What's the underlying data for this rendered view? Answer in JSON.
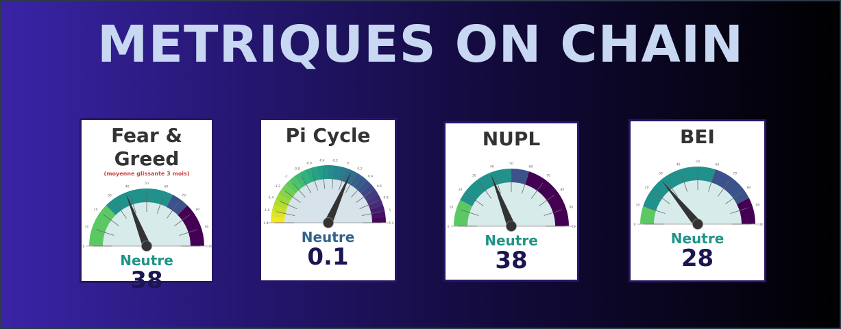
{
  "header": {
    "title": "METRIQUES ON CHAIN"
  },
  "cards": [
    {
      "title": "Fear & Greed",
      "subtitle": "(moyenne glissante 3 mois)",
      "status": "Neutre",
      "status_color": "#1f9487",
      "value": "38",
      "gauge": {
        "min": 0,
        "max": 100,
        "value": 38,
        "ticks": [
          "0",
          "10",
          "20",
          "30",
          "40",
          "50",
          "60",
          "70",
          "80",
          "90",
          "100"
        ],
        "bands": [
          {
            "from": 0,
            "to": 25,
            "color": "#5cc863"
          },
          {
            "from": 25,
            "to": 65,
            "color": "#21918c"
          },
          {
            "from": 65,
            "to": 75,
            "color": "#3b528b"
          },
          {
            "from": 75,
            "to": 100,
            "color": "#440154"
          }
        ]
      }
    },
    {
      "title": "Pi Cycle",
      "subtitle": "",
      "status": "Neutre",
      "status_color": "#33628d",
      "value": "0.1",
      "gauge": {
        "min": -1.8,
        "max": 1.2,
        "value": 0.1,
        "ticks": [
          "-1.8",
          "-1.6",
          "-1.4",
          "-1.2",
          "-1",
          "-0.8",
          "-0.6",
          "-0.4",
          "-0.2",
          "0",
          "0.2",
          "0.4",
          "0.6",
          "0.8",
          "1",
          "1.2"
        ],
        "gradient": "viridis-reversed"
      }
    },
    {
      "title": "NUPL",
      "subtitle": "",
      "status": "Neutre",
      "status_color": "#1f9487",
      "value": "38",
      "gauge": {
        "min": 0,
        "max": 100,
        "value": 38,
        "ticks": [
          "0",
          "10",
          "20",
          "30",
          "40",
          "50",
          "60",
          "70",
          "80",
          "90",
          "100"
        ],
        "bands": [
          {
            "from": 0,
            "to": 15,
            "color": "#5cc863"
          },
          {
            "from": 15,
            "to": 50,
            "color": "#21918c"
          },
          {
            "from": 50,
            "to": 60,
            "color": "#3b528b"
          },
          {
            "from": 60,
            "to": 100,
            "color": "#440154"
          }
        ]
      }
    },
    {
      "title": "BEI",
      "subtitle": "",
      "status": "Neutre",
      "status_color": "#1f9487",
      "value": "28",
      "gauge": {
        "min": 0,
        "max": 100,
        "value": 28,
        "ticks": [
          "0",
          "10",
          "20",
          "30",
          "40",
          "50",
          "60",
          "70",
          "80",
          "90",
          "100"
        ],
        "bands": [
          {
            "from": 0,
            "to": 10,
            "color": "#5cc863"
          },
          {
            "from": 10,
            "to": 60,
            "color": "#21918c"
          },
          {
            "from": 60,
            "to": 85,
            "color": "#3b528b"
          },
          {
            "from": 85,
            "to": 100,
            "color": "#440154"
          }
        ]
      }
    }
  ]
}
